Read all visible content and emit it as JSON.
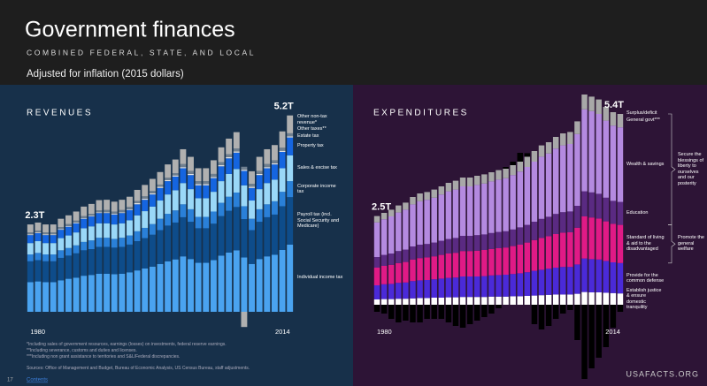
{
  "header": {
    "title": "Government finances",
    "subtitle": "COMBINED FEDERAL, STATE, AND LOCAL",
    "note": "Adjusted for inflation (2015 dollars)"
  },
  "chart_data": [
    {
      "type": "stacked_bar",
      "title": "REVENUES",
      "total_labels": [
        "2.3T",
        "5.2T"
      ],
      "categories": [
        "1980",
        null,
        null,
        null,
        null,
        null,
        null,
        null,
        null,
        null,
        null,
        null,
        null,
        null,
        null,
        null,
        null,
        null,
        null,
        null,
        null,
        null,
        null,
        null,
        null,
        null,
        null,
        null,
        null,
        null,
        null,
        null,
        null,
        null,
        "2014"
      ],
      "series": [
        {
          "name": "Individual income tax",
          "color": "#4aa3f0",
          "values": [
            0.78,
            0.8,
            0.78,
            0.78,
            0.83,
            0.87,
            0.9,
            0.95,
            0.97,
            1.0,
            1.0,
            0.99,
            1.0,
            1.04,
            1.09,
            1.14,
            1.19,
            1.26,
            1.33,
            1.38,
            1.46,
            1.39,
            1.29,
            1.29,
            1.36,
            1.48,
            1.56,
            1.62,
            1.43,
            1.26,
            1.39,
            1.46,
            1.5,
            1.63,
            1.77
          ]
        },
        {
          "name": "Payroll tax (incl. Social Security and Medicare)",
          "color": "#0e4c8a",
          "values": [
            0.55,
            0.56,
            0.55,
            0.55,
            0.59,
            0.61,
            0.64,
            0.67,
            0.68,
            0.71,
            0.71,
            0.7,
            0.71,
            0.73,
            0.77,
            0.8,
            0.84,
            0.89,
            0.94,
            0.97,
            1.03,
            0.98,
            0.91,
            0.91,
            0.96,
            1.04,
            1.1,
            1.14,
            1.01,
            0.89,
            0.98,
            1.03,
            1.06,
            1.15,
            1.25
          ]
        },
        {
          "name": "Corporate income tax",
          "color": "#2a80d8",
          "values": [
            0.18,
            0.19,
            0.18,
            0.18,
            0.2,
            0.2,
            0.21,
            0.22,
            0.23,
            0.24,
            0.24,
            0.23,
            0.24,
            0.24,
            0.26,
            0.27,
            0.28,
            0.3,
            0.31,
            0.32,
            0.34,
            0.33,
            0.3,
            0.3,
            0.32,
            0.35,
            0.37,
            0.38,
            0.34,
            0.3,
            0.33,
            0.34,
            0.35,
            0.38,
            0.42
          ]
        },
        {
          "name": "Sales & excise tax",
          "color": "#9ad8f8",
          "values": [
            0.3,
            0.31,
            0.3,
            0.3,
            0.32,
            0.33,
            0.34,
            0.36,
            0.37,
            0.38,
            0.38,
            0.38,
            0.38,
            0.4,
            0.42,
            0.44,
            0.46,
            0.48,
            0.51,
            0.53,
            0.56,
            0.53,
            0.49,
            0.49,
            0.52,
            0.57,
            0.6,
            0.62,
            0.55,
            0.48,
            0.53,
            0.56,
            0.57,
            0.62,
            0.68
          ]
        },
        {
          "name": "Property tax",
          "color": "#1565e0",
          "values": [
            0.21,
            0.21,
            0.21,
            0.21,
            0.22,
            0.23,
            0.24,
            0.25,
            0.26,
            0.27,
            0.27,
            0.26,
            0.27,
            0.27,
            0.29,
            0.3,
            0.32,
            0.33,
            0.35,
            0.36,
            0.39,
            0.37,
            0.34,
            0.34,
            0.36,
            0.39,
            0.41,
            0.43,
            0.38,
            0.33,
            0.37,
            0.39,
            0.4,
            0.43,
            0.47
          ]
        },
        {
          "name": "Estate tax",
          "color": "#e6e6e6",
          "values": [
            0.02,
            0.02,
            0.02,
            0.02,
            0.02,
            0.02,
            0.02,
            0.02,
            0.02,
            0.02,
            0.02,
            0.02,
            0.02,
            0.02,
            0.03,
            0.03,
            0.03,
            0.03,
            0.03,
            0.03,
            0.03,
            0.03,
            0.03,
            0.03,
            0.03,
            0.03,
            0.03,
            0.03,
            0.03,
            0.03,
            0.03,
            0.03,
            0.03,
            0.03,
            0.03
          ]
        },
        {
          "name": "Other taxes**",
          "color": "#6f7f8f",
          "values": [
            0.05,
            0.05,
            0.05,
            0.05,
            0.05,
            0.05,
            0.05,
            0.05,
            0.05,
            0.05,
            0.06,
            0.06,
            0.06,
            0.06,
            0.06,
            0.06,
            0.06,
            0.06,
            0.06,
            0.06,
            0.08,
            0.08,
            0.08,
            0.08,
            0.08,
            0.08,
            0.08,
            0.08,
            0.08,
            0.08,
            0.08,
            0.08,
            0.08,
            0.08,
            0.08
          ]
        },
        {
          "name": "Other non-tax revenue*",
          "color": "#b0b0b0",
          "values": [
            0.21,
            0.21,
            0.21,
            0.21,
            0.22,
            0.23,
            0.24,
            0.25,
            0.26,
            0.27,
            0.27,
            0.26,
            0.27,
            0.27,
            0.29,
            0.3,
            0.32,
            0.33,
            0.35,
            0.36,
            0.39,
            0.37,
            0.34,
            0.34,
            0.36,
            0.39,
            0.41,
            0.43,
            -0.4,
            0.33,
            0.37,
            0.39,
            0.4,
            0.43,
            0.47
          ]
        }
      ]
    },
    {
      "type": "stacked_bar",
      "title": "EXPENDITURES",
      "total_labels": [
        "2.5T",
        "5.4T"
      ],
      "annotations": [
        "Secure the blessings of liberty to ourselves and our posterity",
        "Promote the general welfare"
      ],
      "categories": [
        "1980",
        null,
        null,
        null,
        null,
        null,
        null,
        null,
        null,
        null,
        null,
        null,
        null,
        null,
        null,
        null,
        null,
        null,
        null,
        null,
        null,
        null,
        null,
        null,
        null,
        null,
        null,
        null,
        null,
        null,
        null,
        null,
        null,
        null,
        "2014"
      ],
      "series": [
        {
          "name": "Establish justice & ensure domestic tranquility",
          "color": "#ffffff",
          "values": [
            0.15,
            0.16,
            0.16,
            0.17,
            0.17,
            0.18,
            0.19,
            0.19,
            0.2,
            0.2,
            0.21,
            0.21,
            0.22,
            0.22,
            0.22,
            0.22,
            0.23,
            0.23,
            0.23,
            0.24,
            0.24,
            0.25,
            0.26,
            0.27,
            0.28,
            0.29,
            0.29,
            0.29,
            0.31,
            0.36,
            0.35,
            0.35,
            0.34,
            0.33,
            0.32
          ]
        },
        {
          "name": "Provide for the common defense",
          "color": "#4a2ad8",
          "values": [
            0.4,
            0.42,
            0.43,
            0.45,
            0.46,
            0.49,
            0.5,
            0.51,
            0.52,
            0.54,
            0.55,
            0.56,
            0.58,
            0.58,
            0.58,
            0.59,
            0.6,
            0.61,
            0.62,
            0.63,
            0.65,
            0.67,
            0.7,
            0.72,
            0.74,
            0.76,
            0.78,
            0.78,
            0.83,
            0.95,
            0.94,
            0.93,
            0.9,
            0.87,
            0.86
          ]
        },
        {
          "name": "Standard of living & aid to the disadvantaged",
          "color": "#e01a86",
          "values": [
            0.5,
            0.52,
            0.54,
            0.56,
            0.58,
            0.61,
            0.63,
            0.64,
            0.65,
            0.67,
            0.69,
            0.7,
            0.72,
            0.72,
            0.73,
            0.74,
            0.75,
            0.76,
            0.77,
            0.79,
            0.81,
            0.84,
            0.87,
            0.9,
            0.92,
            0.95,
            0.97,
            0.98,
            1.04,
            1.19,
            1.18,
            1.16,
            1.12,
            1.09,
            1.08
          ]
        },
        {
          "name": "Education",
          "color": "#5a2a82",
          "values": [
            0.3,
            0.31,
            0.32,
            0.34,
            0.35,
            0.37,
            0.38,
            0.38,
            0.39,
            0.4,
            0.41,
            0.42,
            0.43,
            0.43,
            0.44,
            0.44,
            0.45,
            0.46,
            0.46,
            0.47,
            0.49,
            0.5,
            0.52,
            0.54,
            0.55,
            0.57,
            0.58,
            0.59,
            0.62,
            0.71,
            0.71,
            0.7,
            0.67,
            0.65,
            0.65
          ]
        },
        {
          "name": "Wealth & savings",
          "color": "#b48ae0",
          "values": [
            0.98,
            1.01,
            1.05,
            1.09,
            1.13,
            1.19,
            1.23,
            1.25,
            1.27,
            1.31,
            1.35,
            1.37,
            1.4,
            1.4,
            1.42,
            1.44,
            1.46,
            1.48,
            1.5,
            1.54,
            1.58,
            1.64,
            1.7,
            1.76,
            1.79,
            1.85,
            1.89,
            1.91,
            2.03,
            2.32,
            2.3,
            2.26,
            2.18,
            2.13,
            2.11
          ]
        },
        {
          "name": "General govt***",
          "color": "#a8a8a8",
          "values": [
            0.18,
            0.18,
            0.19,
            0.2,
            0.2,
            0.21,
            0.22,
            0.22,
            0.23,
            0.23,
            0.24,
            0.25,
            0.25,
            0.25,
            0.26,
            0.26,
            0.26,
            0.27,
            0.27,
            0.28,
            0.28,
            0.29,
            0.3,
            0.32,
            0.32,
            0.33,
            0.34,
            0.34,
            0.36,
            0.42,
            0.41,
            0.41,
            0.39,
            0.38,
            0.38
          ]
        },
        {
          "name": "Surplus/deficit",
          "color": "#000000",
          "values": [
            -0.2,
            -0.25,
            -0.4,
            -0.5,
            -0.45,
            -0.5,
            -0.5,
            -0.4,
            -0.4,
            -0.4,
            -0.5,
            -0.6,
            -0.65,
            -0.55,
            -0.45,
            -0.35,
            -0.25,
            -0.1,
            0.05,
            0.1,
            0.25,
            0.1,
            -0.55,
            -0.7,
            -0.6,
            -0.4,
            -0.25,
            -0.15,
            -1.0,
            -2.1,
            -1.8,
            -1.5,
            -1.2,
            -0.65,
            -0.2
          ]
        }
      ]
    }
  ],
  "footnotes": [
    "*Including sales of government resources, earnings (losses) on investments, federal reserve earnings.",
    "**Including severance, customs and duties and licenses.",
    "***Including non grant assistance to territories and S&L/Federal discrepancies."
  ],
  "sources": "Sources: Office of Management and Budget, Bureau of Economic Analysis, US Census Bureau, staff adjustments.",
  "page_number": "17",
  "contents_link": "Contents",
  "logo": "USAFACTS.ORG"
}
